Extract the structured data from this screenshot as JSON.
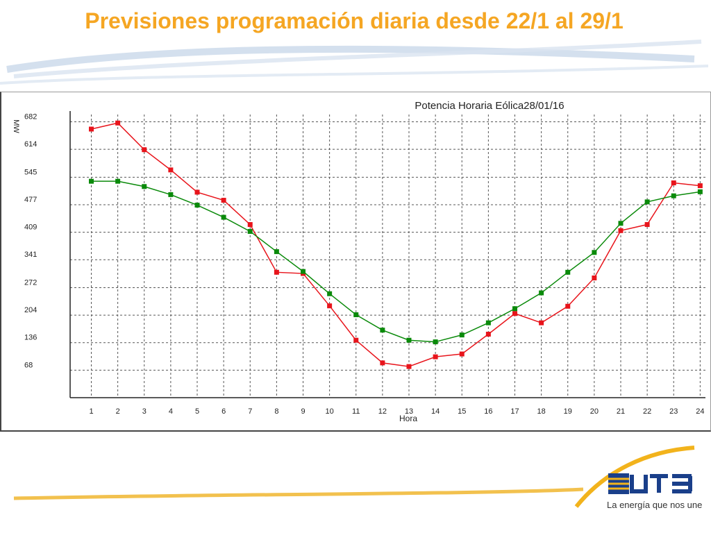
{
  "slide": {
    "title": "Previsiones programación diaria desde 22/1 al 29/1",
    "logo_text": "UTE",
    "tagline": "La energía que nos une"
  },
  "colors": {
    "title": "#f5a623",
    "series_red": "#e8141b",
    "series_green": "#0a8a0a",
    "swoosh_blue": "#b9cde3",
    "swoosh_gold": "#f2b31c"
  },
  "chart_data": {
    "type": "line",
    "title": "Potencia Horaria Eólica28/01/16",
    "xlabel": "Hora",
    "ylabel": "MW",
    "x": [
      1,
      2,
      3,
      4,
      5,
      6,
      7,
      8,
      9,
      10,
      11,
      12,
      13,
      14,
      15,
      16,
      17,
      18,
      19,
      20,
      21,
      22,
      23,
      24
    ],
    "xlim": [
      0.2,
      24.2
    ],
    "ylim": [
      0,
      700
    ],
    "yticks": [
      68,
      136,
      204,
      272,
      341,
      409,
      477,
      545,
      614,
      682
    ],
    "grid": true,
    "series": [
      {
        "color": "#e8141b",
        "values": [
          664,
          679,
          613,
          563,
          508,
          488,
          428,
          310,
          307,
          227,
          142,
          86,
          77,
          101,
          108,
          157,
          208,
          185,
          226,
          296,
          413,
          428,
          531,
          524
        ]
      },
      {
        "color": "#0a8a0a",
        "values": [
          535,
          535,
          522,
          502,
          476,
          446,
          411,
          361,
          312,
          257,
          205,
          167,
          142,
          138,
          155,
          185,
          220,
          259,
          310,
          359,
          431,
          484,
          499,
          509
        ]
      }
    ]
  }
}
